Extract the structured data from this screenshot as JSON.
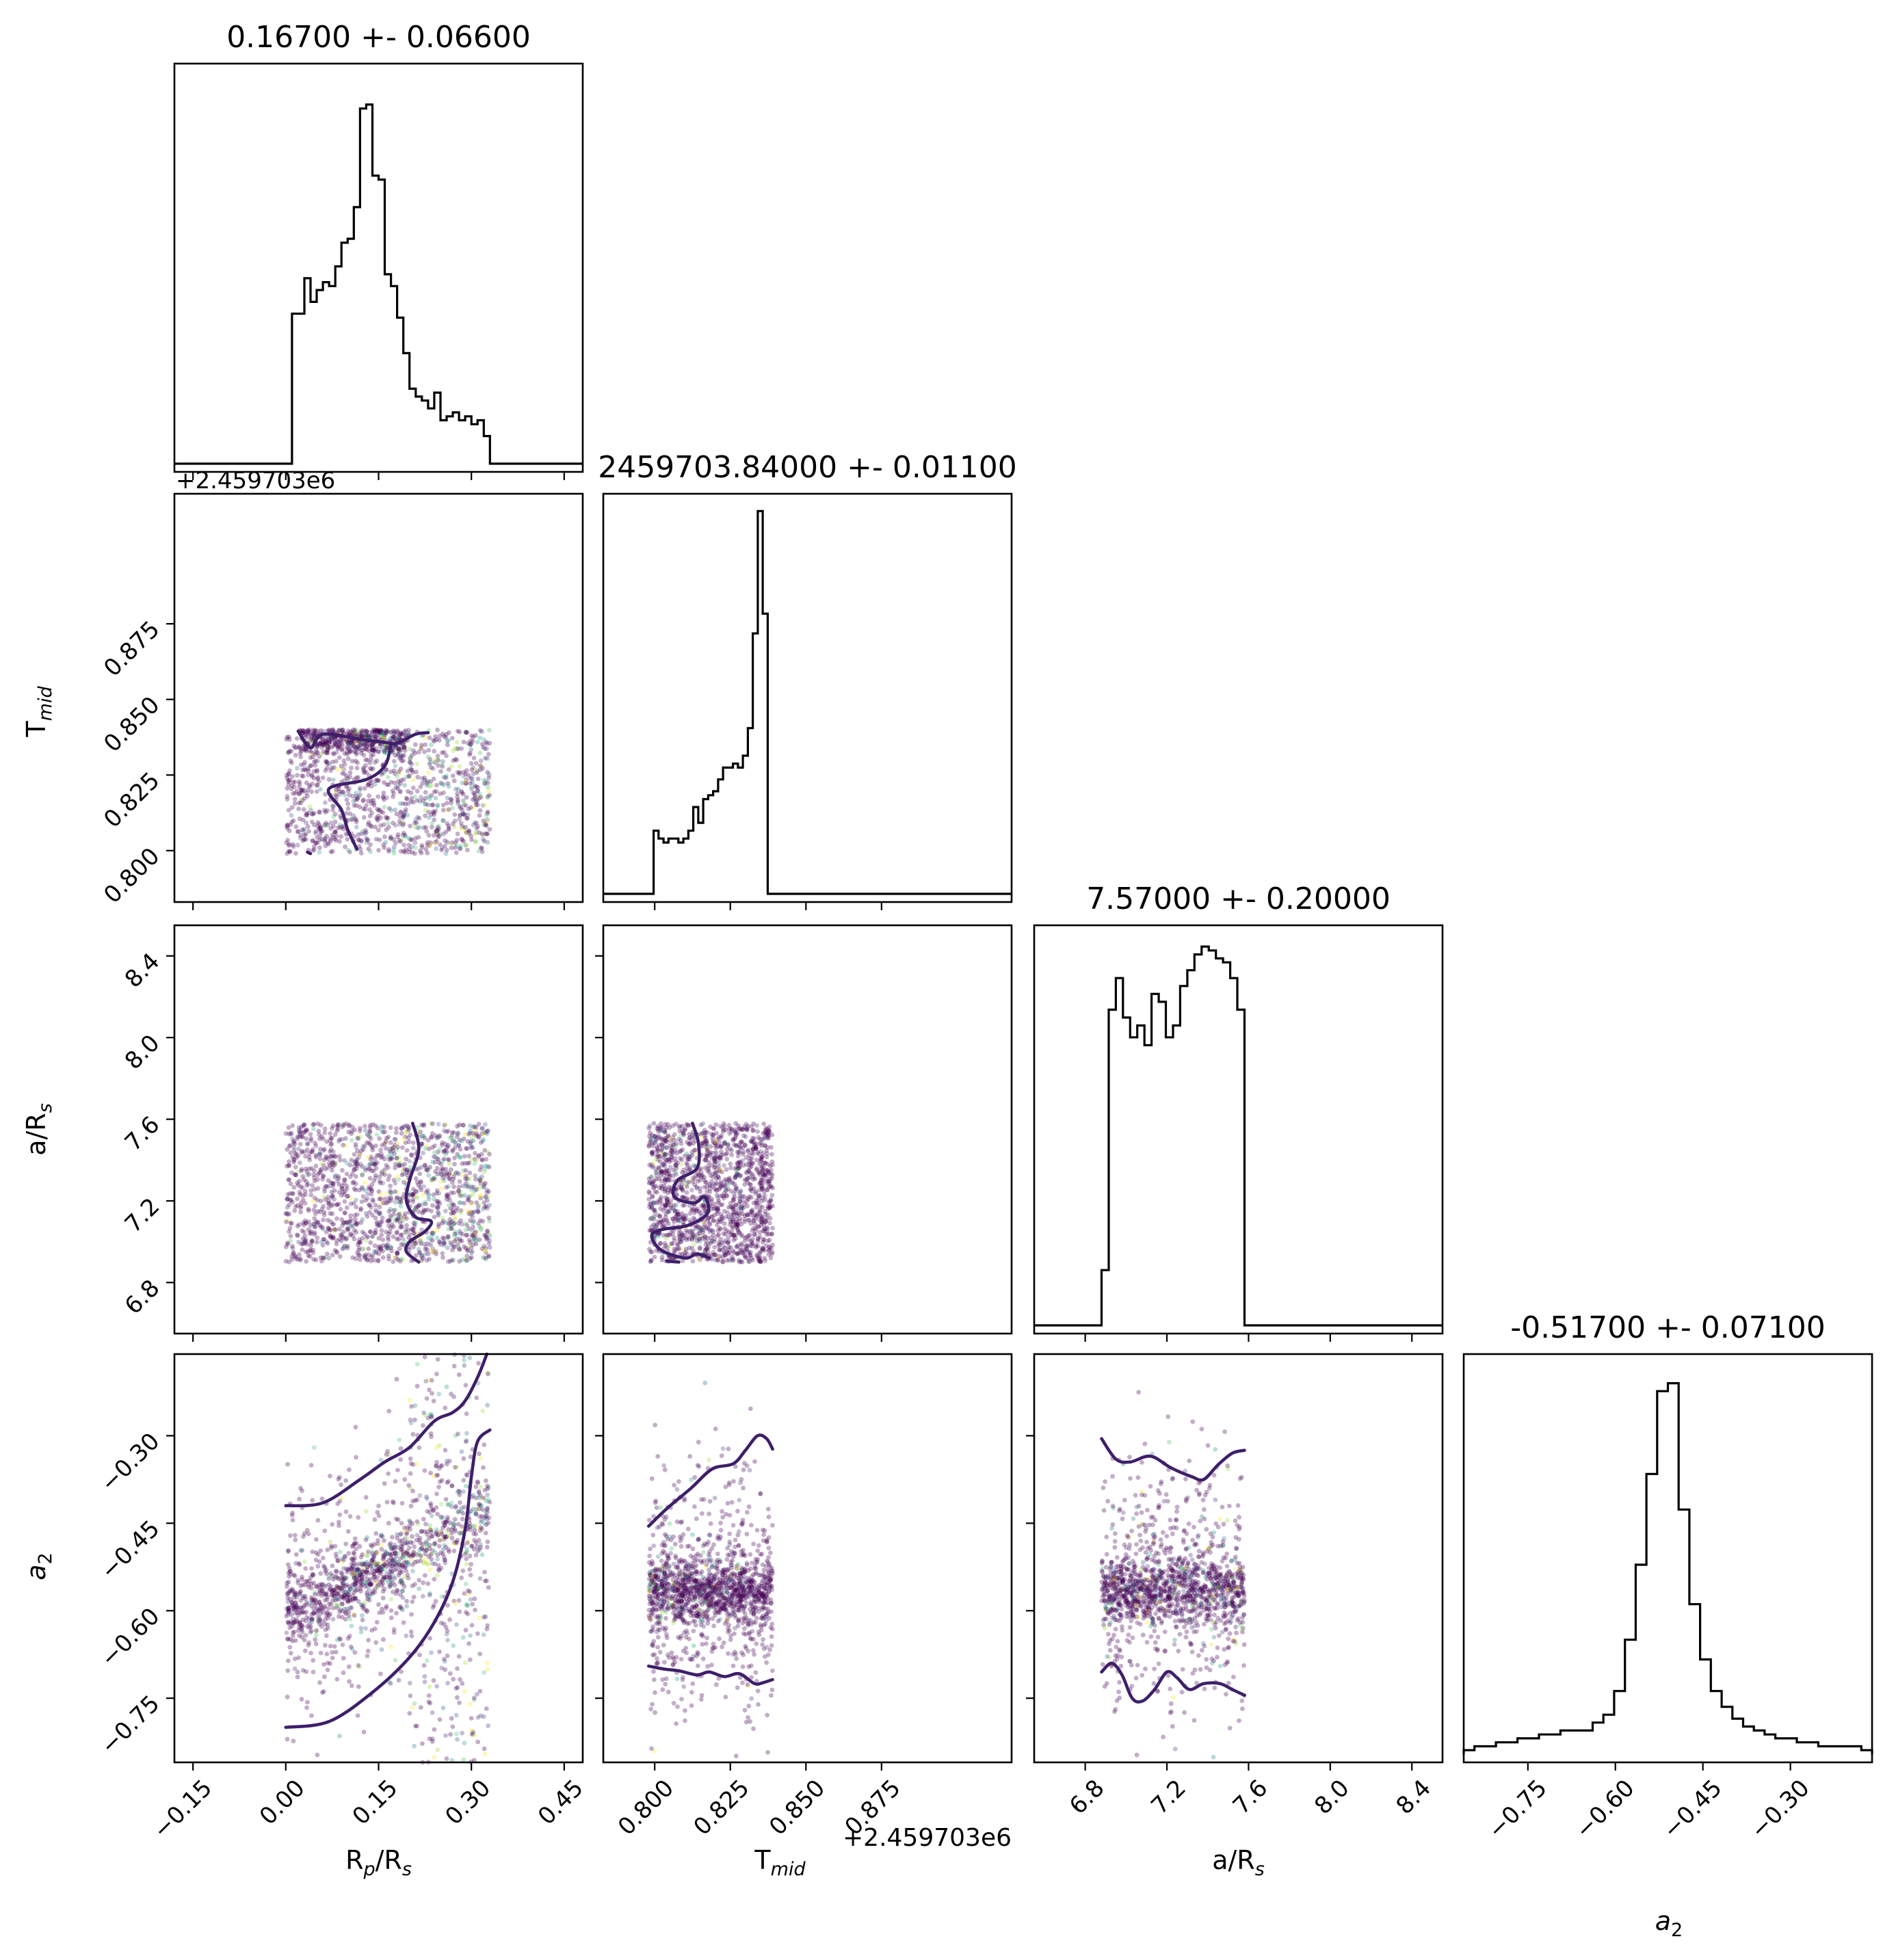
{
  "chart_data": {
    "type": "corner",
    "colormap": "viridis",
    "parameters": [
      {
        "key": "rp",
        "label_main": "R",
        "label_sub1": "p",
        "label_mid": "/R",
        "label_sub2": "s",
        "range": [
          -0.18,
          0.48
        ],
        "ticks": [
          -0.15,
          0.0,
          0.15,
          0.3,
          0.45
        ],
        "tick_labels": [
          "−0.15",
          "0.00",
          "0.15",
          "0.30",
          "0.45"
        ]
      },
      {
        "key": "tmid",
        "label_main": "T",
        "label_sub1": "mid",
        "label_mid": "",
        "label_sub2": "",
        "range": [
          0.783,
          0.918
        ],
        "ticks": [
          0.8,
          0.825,
          0.85,
          0.875
        ],
        "tick_labels": [
          "0.800",
          "0.825",
          "0.850",
          "0.875"
        ],
        "offset_label": "+2.459703e6"
      },
      {
        "key": "ars",
        "label_main": "a/R",
        "label_sub1": "",
        "label_mid": "",
        "label_sub2": "s",
        "range": [
          6.55,
          8.55
        ],
        "ticks": [
          6.8,
          7.2,
          7.6,
          8.0,
          8.4
        ],
        "tick_labels": [
          "6.8",
          "7.2",
          "7.6",
          "8.0",
          "8.4"
        ]
      },
      {
        "key": "a2",
        "label_main": "a",
        "label_sub1": "",
        "label_mid": "",
        "label_sub2": "2",
        "range": [
          -0.86,
          -0.16
        ],
        "ticks": [
          -0.75,
          -0.6,
          -0.45,
          -0.3
        ],
        "tick_labels": [
          "−0.75",
          "−0.60",
          "−0.45",
          "−0.30"
        ]
      }
    ],
    "titles": [
      "0.16700 +- 0.06600",
      "2459703.84000 +- 0.01100",
      "7.57000 +- 0.20000",
      "-0.51700 +- 0.07100"
    ],
    "histograms": [
      {
        "edges": [
          0.0,
          0.33
        ],
        "counts": [
          0.0,
          0.38,
          0.38,
          0.47,
          0.41,
          0.44,
          0.46,
          0.45,
          0.5,
          0.56,
          0.57,
          0.65,
          0.9,
          0.91,
          0.73,
          0.72,
          0.48,
          0.45,
          0.37,
          0.28,
          0.19,
          0.17,
          0.16,
          0.14,
          0.18,
          0.11,
          0.12,
          0.13,
          0.11,
          0.12,
          0.1,
          0.11,
          0.07
        ]
      },
      {
        "edges": [
          0.798,
          0.839
        ],
        "counts": [
          0.0,
          0.16,
          0.14,
          0.13,
          0.14,
          0.14,
          0.13,
          0.14,
          0.16,
          0.22,
          0.18,
          0.24,
          0.25,
          0.26,
          0.29,
          0.32,
          0.32,
          0.33,
          0.32,
          0.35,
          0.42,
          0.66,
          0.97,
          0.71,
          0.0
        ]
      },
      {
        "edges": [
          6.88,
          7.58
        ],
        "counts": [
          0.14,
          0.8,
          0.88,
          0.78,
          0.73,
          0.76,
          0.71,
          0.84,
          0.82,
          0.73,
          0.76,
          0.86,
          0.9,
          0.94,
          0.96,
          0.95,
          0.93,
          0.92,
          0.88,
          0.8
        ]
      },
      {
        "edges": [
          -0.86,
          -0.16
        ],
        "counts": [
          0.01,
          0.02,
          0.02,
          0.03,
          0.03,
          0.04,
          0.04,
          0.05,
          0.05,
          0.06,
          0.06,
          0.06,
          0.08,
          0.1,
          0.16,
          0.29,
          0.48,
          0.71,
          0.92,
          0.94,
          0.62,
          0.38,
          0.24,
          0.16,
          0.12,
          0.09,
          0.07,
          0.06,
          0.05,
          0.04,
          0.04,
          0.03,
          0.03,
          0.02,
          0.02,
          0.02,
          0.02,
          0.01
        ]
      }
    ],
    "scatter": [
      {
        "x": "rp",
        "y": "tmid",
        "x_range": [
          0.0,
          0.33
        ],
        "y_range": [
          0.799,
          0.84
        ],
        "dense": {
          "x": [
            0.02,
            0.2
          ],
          "y": [
            0.832,
            0.84
          ]
        }
      },
      {
        "x": "rp",
        "y": "ars",
        "x_range": [
          0.0,
          0.33
        ],
        "y_range": [
          6.9,
          7.58
        ]
      },
      {
        "x": "tmid",
        "y": "ars",
        "x_range": [
          0.798,
          0.839
        ],
        "y_range": [
          6.9,
          7.58
        ]
      },
      {
        "x": "rp",
        "y": "a2",
        "x_range": [
          0.0,
          0.33
        ],
        "y_range": [
          -0.86,
          -0.16
        ],
        "band_slope": 0.55
      },
      {
        "x": "tmid",
        "y": "a2",
        "x_range": [
          0.798,
          0.839
        ],
        "y_range": [
          -0.86,
          -0.16
        ],
        "band_center": -0.565
      },
      {
        "x": "ars",
        "y": "a2",
        "x_range": [
          6.88,
          7.58
        ],
        "y_range": [
          -0.86,
          -0.16
        ],
        "band_center": -0.565
      }
    ],
    "contours": [
      {
        "x": "rp",
        "y": "tmid",
        "segments": [
          [
            [
              0.02,
              0.8395
            ],
            [
              0.04,
              0.834
            ],
            [
              0.06,
              0.8385
            ],
            [
              0.12,
              0.8368
            ],
            [
              0.16,
              0.8358
            ],
            [
              0.18,
              0.8355
            ],
            [
              0.21,
              0.8385
            ],
            [
              0.23,
              0.839
            ]
          ],
          [
            [
              0.17,
              0.835
            ],
            [
              0.16,
              0.828
            ],
            [
              0.13,
              0.8235
            ],
            [
              0.07,
              0.8205
            ],
            [
              0.09,
              0.8135
            ],
            [
              0.1,
              0.807
            ],
            [
              0.115,
              0.8005
            ]
          ],
          [
            [
              0.035,
              0.7995
            ],
            [
              0.04,
              0.799
            ]
          ]
        ]
      },
      {
        "x": "rp",
        "y": "ars",
        "segments": [
          [
            [
              0.205,
              7.58
            ],
            [
              0.215,
              7.45
            ],
            [
              0.2,
              7.3
            ],
            [
              0.195,
              7.2
            ],
            [
              0.21,
              7.12
            ],
            [
              0.235,
              7.1
            ],
            [
              0.225,
              7.05
            ],
            [
              0.2,
              7.0
            ],
            [
              0.195,
              6.95
            ],
            [
              0.215,
              6.9
            ]
          ]
        ]
      },
      {
        "x": "tmid",
        "y": "ars",
        "segments": [
          [
            [
              0.8125,
              7.58
            ],
            [
              0.8145,
              7.48
            ],
            [
              0.814,
              7.36
            ],
            [
              0.8075,
              7.3
            ],
            [
              0.8065,
              7.22
            ],
            [
              0.813,
              7.19
            ],
            [
              0.8165,
              7.22
            ],
            [
              0.8175,
              7.14
            ],
            [
              0.811,
              7.08
            ],
            [
              0.8025,
              7.06
            ],
            [
              0.799,
              7.03
            ],
            [
              0.802,
              6.96
            ],
            [
              0.81,
              6.92
            ],
            [
              0.814,
              6.94
            ],
            [
              0.818,
              6.92
            ]
          ],
          [
            [
              0.804,
              6.905
            ],
            [
              0.808,
              6.9
            ]
          ]
        ]
      },
      {
        "x": "rp",
        "y": "a2",
        "segments": [
          [
            [
              0.0,
              -0.42
            ],
            [
              0.06,
              -0.415
            ],
            [
              0.12,
              -0.375
            ],
            [
              0.16,
              -0.345
            ],
            [
              0.2,
              -0.32
            ],
            [
              0.24,
              -0.275
            ],
            [
              0.27,
              -0.26
            ],
            [
              0.29,
              -0.24
            ],
            [
              0.31,
              -0.2
            ],
            [
              0.325,
              -0.16
            ]
          ],
          [
            [
              0.0,
              -0.8
            ],
            [
              0.07,
              -0.79
            ],
            [
              0.14,
              -0.74
            ],
            [
              0.2,
              -0.68
            ],
            [
              0.24,
              -0.62
            ],
            [
              0.27,
              -0.55
            ],
            [
              0.29,
              -0.46
            ],
            [
              0.3,
              -0.37
            ],
            [
              0.31,
              -0.31
            ],
            [
              0.33,
              -0.29
            ]
          ]
        ]
      },
      {
        "x": "tmid",
        "y": "a2",
        "segments": [
          [
            [
              0.798,
              -0.455
            ],
            [
              0.804,
              -0.425
            ],
            [
              0.812,
              -0.39
            ],
            [
              0.819,
              -0.357
            ],
            [
              0.826,
              -0.348
            ],
            [
              0.83,
              -0.325
            ],
            [
              0.834,
              -0.3
            ],
            [
              0.837,
              -0.305
            ],
            [
              0.839,
              -0.323
            ]
          ],
          [
            [
              0.798,
              -0.695
            ],
            [
              0.803,
              -0.7
            ],
            [
              0.808,
              -0.703
            ],
            [
              0.814,
              -0.71
            ],
            [
              0.818,
              -0.705
            ],
            [
              0.823,
              -0.713
            ],
            [
              0.828,
              -0.708
            ],
            [
              0.833,
              -0.725
            ],
            [
              0.836,
              -0.723
            ],
            [
              0.839,
              -0.718
            ]
          ]
        ]
      },
      {
        "x": "ars",
        "y": "a2",
        "segments": [
          [
            [
              6.88,
              -0.305
            ],
            [
              6.95,
              -0.34
            ],
            [
              7.02,
              -0.345
            ],
            [
              7.12,
              -0.335
            ],
            [
              7.22,
              -0.355
            ],
            [
              7.32,
              -0.37
            ],
            [
              7.38,
              -0.375
            ],
            [
              7.45,
              -0.35
            ],
            [
              7.52,
              -0.33
            ],
            [
              7.58,
              -0.325
            ]
          ],
          [
            [
              6.88,
              -0.705
            ],
            [
              6.93,
              -0.69
            ],
            [
              6.98,
              -0.71
            ],
            [
              7.03,
              -0.75
            ],
            [
              7.08,
              -0.755
            ],
            [
              7.14,
              -0.735
            ],
            [
              7.2,
              -0.705
            ],
            [
              7.25,
              -0.715
            ],
            [
              7.31,
              -0.735
            ],
            [
              7.38,
              -0.725
            ],
            [
              7.46,
              -0.725
            ],
            [
              7.52,
              -0.735
            ],
            [
              7.58,
              -0.745
            ]
          ]
        ]
      }
    ]
  }
}
